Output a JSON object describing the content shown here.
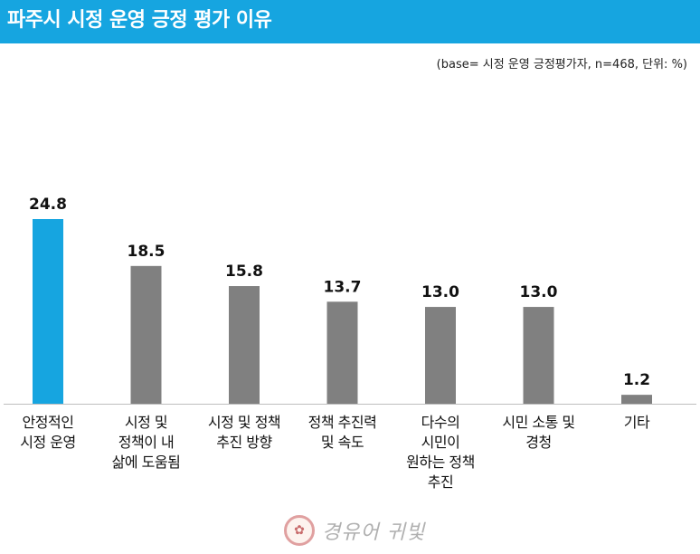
{
  "header": {
    "title": "파주시 시정 운영 긍정 평가 이유"
  },
  "note": "(base= 시정 운영 긍정평가자, n=468, 단위: %)",
  "colors": {
    "title_bg": "#16a5e0",
    "highlight": "#16a5e0",
    "bar": "#808080",
    "axis": "#bfbfbf"
  },
  "chart_data": {
    "type": "bar",
    "categories": [
      "안정적인\n시정 운영",
      "시정 및\n정책이 내\n삶에 도움됨",
      "시정 및 정책\n추진 방향",
      "정책 추진력\n및 속도",
      "다수의\n시민이\n원하는 정책\n추진",
      "시민 소통 및\n경청",
      "기타"
    ],
    "values": [
      24.8,
      18.5,
      15.8,
      13.7,
      13.0,
      13.0,
      1.2
    ],
    "value_labels": [
      "24.8",
      "18.5",
      "15.8",
      "13.7",
      "13.0",
      "13.0",
      "1.2"
    ],
    "highlight_index": 0,
    "ylim": [
      0,
      24.8
    ],
    "grid": false,
    "legend": "none"
  },
  "logo": {
    "icon": "seal-icon",
    "text": "경유어 귀빛"
  }
}
